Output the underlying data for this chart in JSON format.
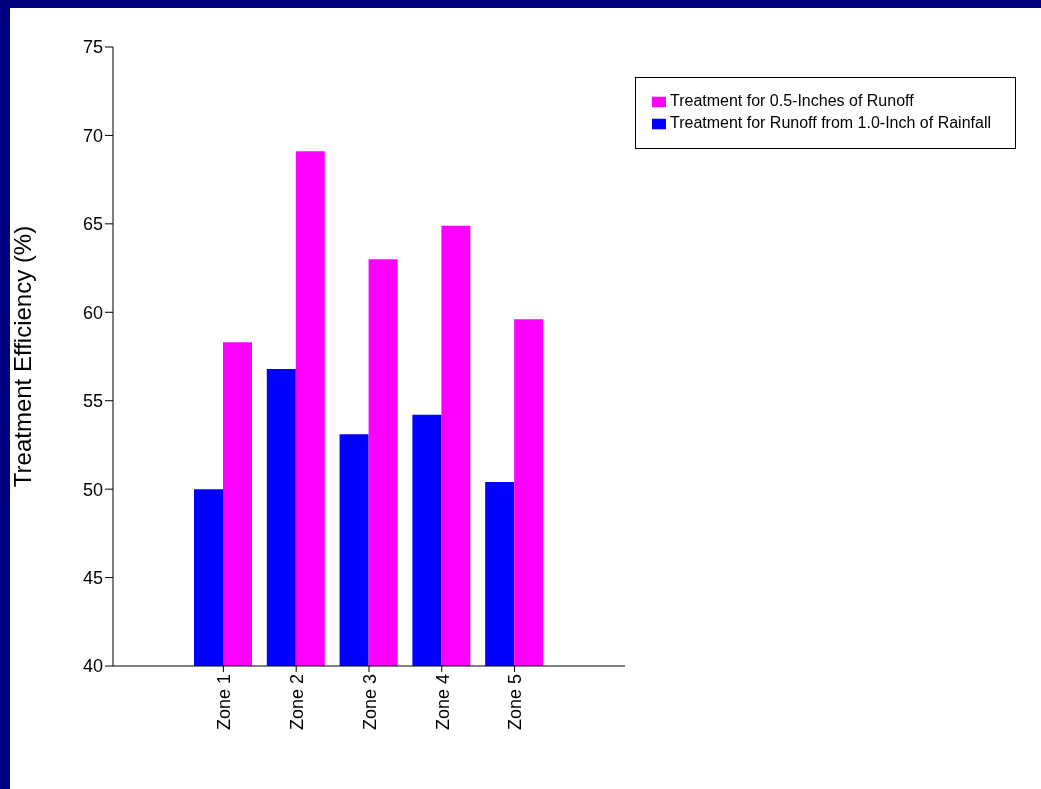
{
  "chart_data": {
    "type": "bar",
    "ylabel": "Treatment Efficiency (%)",
    "categories": [
      "Zone 1",
      "Zone 2",
      "Zone 3",
      "Zone 4",
      "Zone 5"
    ],
    "series": [
      {
        "name": "Treatment for Runoff from 1.0-Inch of Rainfall",
        "color": "#0000ff",
        "values": [
          50.0,
          56.8,
          53.1,
          54.2,
          50.4
        ]
      },
      {
        "name": "Treatment for 0.5-Inches of Runoff",
        "color": "#ff00ff",
        "values": [
          58.3,
          69.1,
          63.0,
          64.9,
          59.6
        ]
      }
    ],
    "ylim": [
      40,
      75
    ],
    "yticks": [
      40,
      45,
      50,
      55,
      60,
      65,
      70,
      75
    ],
    "grid": false,
    "legend": "top right"
  }
}
